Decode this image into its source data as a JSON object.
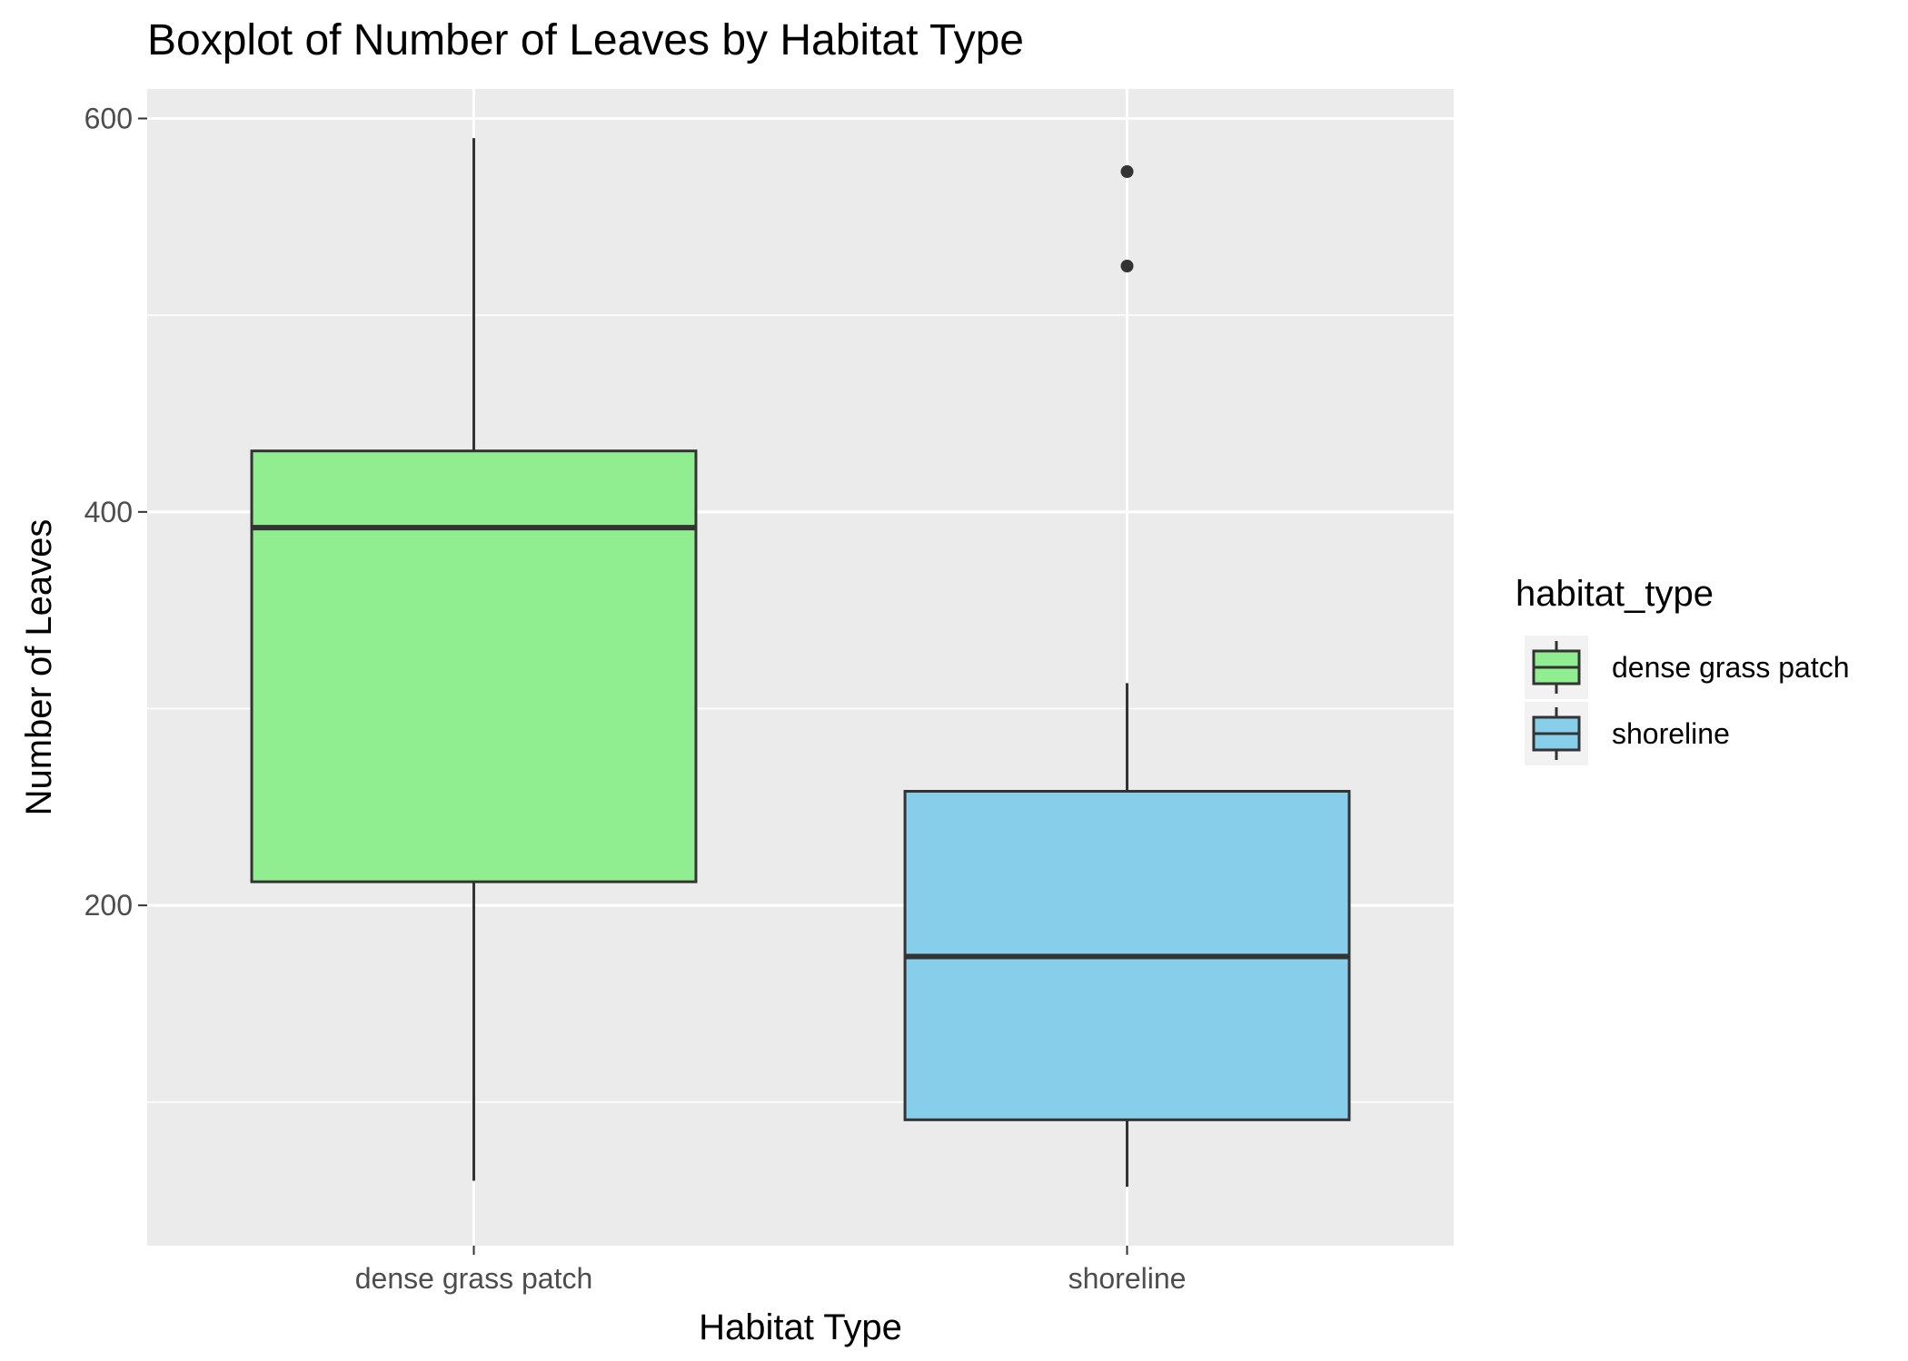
{
  "chart_data": {
    "type": "boxplot",
    "title": "Boxplot of Number of Leaves by Habitat Type",
    "xlabel": "Habitat Type",
    "ylabel": "Number of Leaves",
    "ylim": [
      27,
      615
    ],
    "y_ticks": [
      200,
      400,
      600
    ],
    "y_minor_ticks": [
      100,
      300,
      500
    ],
    "grid": true,
    "categories": [
      "dense grass patch",
      "shoreline"
    ],
    "boxes": [
      {
        "category": "dense grass patch",
        "whisker_low": 60,
        "q1": 212,
        "median": 392,
        "q3": 431,
        "whisker_high": 590,
        "outliers": [],
        "fill": "#90EE90"
      },
      {
        "category": "shoreline",
        "whisker_low": 57,
        "q1": 91,
        "median": 174,
        "q3": 258,
        "whisker_high": 313,
        "outliers": [
          573,
          525
        ],
        "fill": "#87CEEB"
      }
    ],
    "legend": {
      "title": "habitat_type",
      "position": "right",
      "entries": [
        {
          "label": "dense grass patch",
          "fill": "#90EE90"
        },
        {
          "label": "shoreline",
          "fill": "#87CEEB"
        }
      ]
    },
    "colors": {
      "panel": "#EBEBEB",
      "grid": "#FFFFFF",
      "line": "#333333",
      "axis_text": "#4D4D4D",
      "legend_key_bg": "#F2F2F2"
    }
  }
}
